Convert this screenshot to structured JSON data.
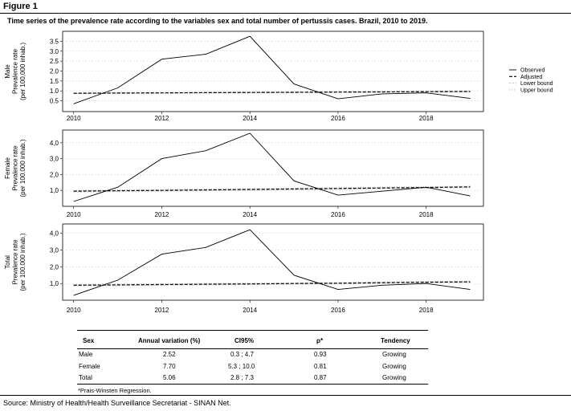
{
  "figure_label": "Figure 1",
  "caption": "Time series of the prevalence rate according to the variables sex and total number of pertussis cases. Brazil, 2010 to 2019.",
  "legend": [
    "Observed",
    "Adjusted",
    "Lower bound",
    "Upper bound"
  ],
  "colors": {
    "observed": "#000000",
    "adjusted": "#000000",
    "lower": "#bdbdbd",
    "upper": "#9e9e9e",
    "grid": "#d9d9d9"
  },
  "chart_data": [
    {
      "type": "line",
      "ylabel": [
        "Male",
        "Prevalence rate",
        "(per 100,000 inhab.)"
      ],
      "yticks": [
        "0.5",
        "1.0",
        "1.5",
        "2.0",
        "2.5",
        "3.0",
        "3.5"
      ],
      "ytick_values": [
        0.5,
        1.0,
        1.5,
        2.0,
        2.5,
        3.0,
        3.5
      ],
      "ylim": [
        0.2,
        3.8
      ],
      "xticks": [
        "2010",
        "2012",
        "2014",
        "2016",
        "2018"
      ],
      "xtick_values": [
        2010,
        2012,
        2014,
        2016,
        2018
      ],
      "xlim": [
        2009.75,
        2019.3
      ],
      "x": [
        2010,
        2011,
        2012,
        2013,
        2014,
        2015,
        2016,
        2017,
        2018,
        2019
      ],
      "series": [
        {
          "name": "Observed",
          "values": [
            0.35,
            1.15,
            2.6,
            2.85,
            3.75,
            1.35,
            0.6,
            0.85,
            0.9,
            0.62
          ]
        },
        {
          "name": "Adjusted",
          "values": [
            0.88,
            0.89,
            0.9,
            0.91,
            0.92,
            0.93,
            0.94,
            0.95,
            0.96,
            0.97
          ]
        },
        {
          "name": "Lower bound",
          "values": [
            0.86,
            0.87,
            0.88,
            0.89,
            0.9,
            0.91,
            0.92,
            0.93,
            0.94,
            0.95
          ]
        },
        {
          "name": "Upper bound",
          "values": [
            0.9,
            0.91,
            0.92,
            0.93,
            0.94,
            0.95,
            0.96,
            0.97,
            0.98,
            0.99
          ]
        }
      ]
    },
    {
      "type": "line",
      "ylabel": [
        "Female",
        "Prevalence rate",
        "(per 100.000 inhab.)"
      ],
      "yticks": [
        "1,0",
        "2,0",
        "3,0",
        "4,0"
      ],
      "ytick_values": [
        1.0,
        2.0,
        3.0,
        4.0
      ],
      "ylim": [
        0.2,
        4.7
      ],
      "xticks": [
        "2010",
        "2012",
        "2014",
        "2016",
        "2018"
      ],
      "xtick_values": [
        2010,
        2012,
        2014,
        2016,
        2018
      ],
      "xlim": [
        2009.75,
        2019.3
      ],
      "x": [
        2010,
        2011,
        2012,
        2013,
        2014,
        2015,
        2016,
        2017,
        2018,
        2019
      ],
      "series": [
        {
          "name": "Observed",
          "values": [
            0.3,
            1.2,
            3.0,
            3.5,
            4.6,
            1.6,
            0.7,
            0.95,
            1.2,
            0.65
          ]
        },
        {
          "name": "Adjusted",
          "values": [
            0.95,
            0.98,
            1.0,
            1.03,
            1.06,
            1.09,
            1.12,
            1.15,
            1.18,
            1.22
          ]
        },
        {
          "name": "Lower bound",
          "values": [
            0.9,
            0.93,
            0.95,
            0.98,
            1.01,
            1.04,
            1.07,
            1.1,
            1.13,
            1.17
          ]
        },
        {
          "name": "Upper bound",
          "values": [
            1.0,
            1.03,
            1.05,
            1.08,
            1.11,
            1.14,
            1.17,
            1.2,
            1.23,
            1.27
          ]
        }
      ]
    },
    {
      "type": "line",
      "ylabel": [
        "Total",
        "Prevalence rate",
        "(per 100.000 inhab.)"
      ],
      "yticks": [
        "1,0",
        "2,0",
        "3,0",
        "4,0"
      ],
      "ytick_values": [
        1.0,
        2.0,
        3.0,
        4.0
      ],
      "ylim": [
        0.2,
        4.4
      ],
      "xticks": [
        "2010",
        "2012",
        "2014",
        "2016",
        "2018"
      ],
      "xtick_values": [
        2010,
        2012,
        2014,
        2016,
        2018
      ],
      "xlim": [
        2009.75,
        2019.3
      ],
      "x": [
        2010,
        2011,
        2012,
        2013,
        2014,
        2015,
        2016,
        2017,
        2018,
        2019
      ],
      "series": [
        {
          "name": "Observed",
          "values": [
            0.3,
            1.2,
            2.75,
            3.15,
            4.2,
            1.5,
            0.65,
            0.9,
            1.0,
            0.65
          ]
        },
        {
          "name": "Adjusted",
          "values": [
            0.9,
            0.92,
            0.94,
            0.96,
            0.98,
            1.0,
            1.02,
            1.05,
            1.08,
            1.1
          ]
        },
        {
          "name": "Lower bound",
          "values": [
            0.86,
            0.88,
            0.9,
            0.92,
            0.94,
            0.96,
            0.98,
            1.01,
            1.04,
            1.06
          ]
        },
        {
          "name": "Upper bound",
          "values": [
            0.94,
            0.96,
            0.98,
            1.0,
            1.02,
            1.04,
            1.06,
            1.09,
            1.12,
            1.14
          ]
        }
      ]
    }
  ],
  "table": {
    "headers": [
      "Sex",
      "Annual variation (%)",
      "CI95%",
      "ρ*",
      "Tendency"
    ],
    "rows": [
      [
        "Male",
        "2.52",
        "0.3 ; 4.7",
        "0.93",
        "Growing"
      ],
      [
        "Female",
        "7.70",
        "5.3 ; 10.0",
        "0.81",
        "Growing"
      ],
      [
        "Total",
        "5.06",
        "2.8 ; 7.3",
        "0.87",
        "Growing"
      ]
    ],
    "footnote": "*Prais-Winsten Regression."
  },
  "source": "Source: Ministry of Health/Health Surveillance Secretariat - SINAN Net."
}
